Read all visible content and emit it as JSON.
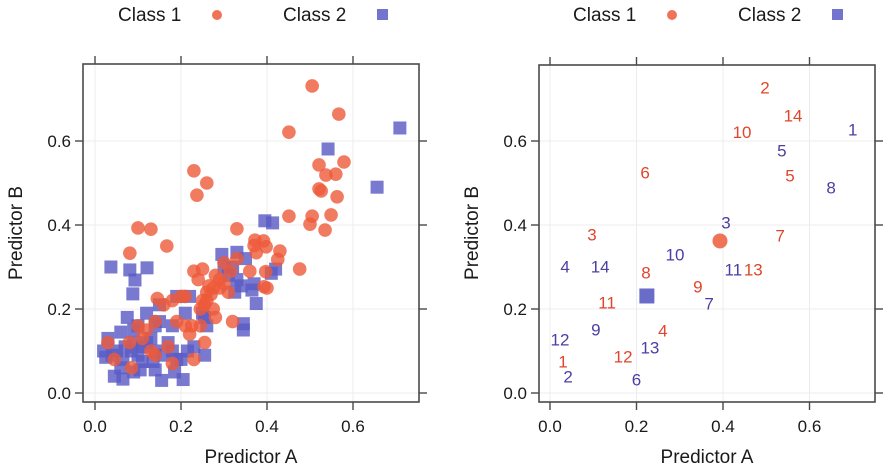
{
  "colors": {
    "class1": "#EE5A3A",
    "class2": "#5A5CC4",
    "class1_text": "#E0462C",
    "class2_text": "#4B3FA3"
  },
  "chart_data": [
    {
      "type": "scatter",
      "title": "",
      "legend": {
        "placement": "top",
        "entries": [
          {
            "label": "Class 1",
            "marker": "circle"
          },
          {
            "label": "Class 2",
            "marker": "square"
          }
        ]
      },
      "xlabel": "Predictor A",
      "ylabel": "Predictor B",
      "xlim": [
        -0.03,
        0.76
      ],
      "ylim": [
        -0.02,
        0.79
      ],
      "xticks": [
        0.0,
        0.2,
        0.4,
        0.6
      ],
      "yticks": [
        0.0,
        0.2,
        0.4,
        0.6
      ],
      "xtick_labels": [
        "0.0",
        "0.2",
        "0.4",
        "0.6"
      ],
      "ytick_labels": [
        "0.0",
        "0.2",
        "0.4",
        "0.6"
      ],
      "grid": true,
      "series": [
        {
          "name": "Class 1",
          "marker": "circle",
          "points": [
            [
              0.505,
              0.731
            ],
            [
              0.567,
              0.664
            ],
            [
              0.451,
              0.621
            ],
            [
              0.579,
              0.55
            ],
            [
              0.521,
              0.543
            ],
            [
              0.56,
              0.521
            ],
            [
              0.537,
              0.519
            ],
            [
              0.526,
              0.481
            ],
            [
              0.521,
              0.486
            ],
            [
              0.563,
              0.467
            ],
            [
              0.451,
              0.421
            ],
            [
              0.505,
              0.421
            ],
            [
              0.549,
              0.424
            ],
            [
              0.5,
              0.402
            ],
            [
              0.535,
              0.388
            ],
            [
              0.23,
              0.529
            ],
            [
              0.26,
              0.5
            ],
            [
              0.237,
              0.471
            ],
            [
              0.1,
              0.393
            ],
            [
              0.13,
              0.39
            ],
            [
              0.167,
              0.35
            ],
            [
              0.081,
              0.333
            ],
            [
              0.33,
              0.391
            ],
            [
              0.372,
              0.364
            ],
            [
              0.392,
              0.362
            ],
            [
              0.398,
              0.348
            ],
            [
              0.37,
              0.351
            ],
            [
              0.375,
              0.334
            ],
            [
              0.43,
              0.338
            ],
            [
              0.425,
              0.318
            ],
            [
              0.476,
              0.295
            ],
            [
              0.36,
              0.29
            ],
            [
              0.397,
              0.289
            ],
            [
              0.393,
              0.253
            ],
            [
              0.4,
              0.25
            ],
            [
              0.33,
              0.32
            ],
            [
              0.3,
              0.31
            ],
            [
              0.315,
              0.29
            ],
            [
              0.28,
              0.28
            ],
            [
              0.29,
              0.27
            ],
            [
              0.275,
              0.25
            ],
            [
              0.29,
              0.25
            ],
            [
              0.3,
              0.26
            ],
            [
              0.265,
              0.255
            ],
            [
              0.26,
              0.24
            ],
            [
              0.27,
              0.235
            ],
            [
              0.31,
              0.24
            ],
            [
              0.25,
              0.22
            ],
            [
              0.255,
              0.21
            ],
            [
              0.245,
              0.2
            ],
            [
              0.26,
              0.22
            ],
            [
              0.275,
              0.2
            ],
            [
              0.28,
              0.18
            ],
            [
              0.32,
              0.17
            ],
            [
              0.23,
              0.29
            ],
            [
              0.25,
              0.295
            ],
            [
              0.24,
              0.27
            ],
            [
              0.21,
              0.23
            ],
            [
              0.2,
              0.23
            ],
            [
              0.18,
              0.22
            ],
            [
              0.16,
              0.21
            ],
            [
              0.145,
              0.225
            ],
            [
              0.19,
              0.17
            ],
            [
              0.21,
              0.16
            ],
            [
              0.225,
              0.16
            ],
            [
              0.245,
              0.16
            ],
            [
              0.255,
              0.12
            ],
            [
              0.14,
              0.17
            ],
            [
              0.12,
              0.15
            ],
            [
              0.1,
              0.16
            ],
            [
              0.08,
              0.12
            ],
            [
              0.11,
              0.13
            ],
            [
              0.03,
              0.12
            ],
            [
              0.045,
              0.08
            ],
            [
              0.085,
              0.06
            ],
            [
              0.14,
              0.09
            ],
            [
              0.18,
              0.07
            ],
            [
              0.23,
              0.08
            ],
            [
              0.17,
              0.11
            ],
            [
              0.22,
              0.14
            ],
            [
              0.13,
              0.1
            ]
          ]
        },
        {
          "name": "Class 2",
          "marker": "square",
          "points": [
            [
              0.709,
              0.631
            ],
            [
              0.542,
              0.581
            ],
            [
              0.656,
              0.49
            ],
            [
              0.395,
              0.41
            ],
            [
              0.413,
              0.405
            ],
            [
              0.42,
              0.295
            ],
            [
              0.41,
              0.285
            ],
            [
              0.037,
              0.3
            ],
            [
              0.081,
              0.293
            ],
            [
              0.121,
              0.298
            ],
            [
              0.093,
              0.269
            ],
            [
              0.088,
              0.236
            ],
            [
              0.295,
              0.33
            ],
            [
              0.33,
              0.335
            ],
            [
              0.35,
              0.32
            ],
            [
              0.3,
              0.3
            ],
            [
              0.32,
              0.3
            ],
            [
              0.31,
              0.28
            ],
            [
              0.33,
              0.27
            ],
            [
              0.325,
              0.24
            ],
            [
              0.34,
              0.255
            ],
            [
              0.37,
              0.26
            ],
            [
              0.365,
              0.245
            ],
            [
              0.375,
              0.213
            ],
            [
              0.345,
              0.165
            ],
            [
              0.345,
              0.15
            ],
            [
              0.19,
              0.23
            ],
            [
              0.22,
              0.23
            ],
            [
              0.25,
              0.19
            ],
            [
              0.255,
              0.18
            ],
            [
              0.26,
              0.16
            ],
            [
              0.21,
              0.19
            ],
            [
              0.18,
              0.16
            ],
            [
              0.15,
              0.21
            ],
            [
              0.15,
              0.17
            ],
            [
              0.14,
              0.16
            ],
            [
              0.12,
              0.19
            ],
            [
              0.1,
              0.16
            ],
            [
              0.09,
              0.15
            ],
            [
              0.075,
              0.18
            ],
            [
              0.06,
              0.145
            ],
            [
              0.03,
              0.13
            ],
            [
              0.02,
              0.1
            ],
            [
              0.04,
              0.09
            ],
            [
              0.05,
              0.1
            ],
            [
              0.065,
              0.08
            ],
            [
              0.07,
              0.11
            ],
            [
              0.085,
              0.1
            ],
            [
              0.1,
              0.09
            ],
            [
              0.11,
              0.11
            ],
            [
              0.12,
              0.12
            ],
            [
              0.13,
              0.13
            ],
            [
              0.14,
              0.1
            ],
            [
              0.16,
              0.09
            ],
            [
              0.17,
              0.12
            ],
            [
              0.18,
              0.1
            ],
            [
              0.19,
              0.08
            ],
            [
              0.2,
              0.08
            ],
            [
              0.215,
              0.1
            ],
            [
              0.23,
              0.11
            ],
            [
              0.255,
              0.09
            ],
            [
              0.045,
              0.04
            ],
            [
              0.065,
              0.033
            ],
            [
              0.09,
              0.05
            ],
            [
              0.105,
              0.055
            ],
            [
              0.14,
              0.055
            ],
            [
              0.155,
              0.03
            ],
            [
              0.185,
              0.05
            ],
            [
              0.205,
              0.032
            ],
            [
              0.11,
              0.075
            ],
            [
              0.135,
              0.075
            ],
            [
              0.06,
              0.06
            ],
            [
              0.025,
              0.085
            ],
            [
              0.09,
              0.12
            ]
          ]
        }
      ]
    },
    {
      "type": "scatter",
      "title": "",
      "legend": {
        "placement": "top",
        "entries": [
          {
            "label": "Class 1",
            "marker": "circle"
          },
          {
            "label": "Class 2",
            "marker": "square"
          }
        ]
      },
      "xlabel": "Predictor A",
      "ylabel": "Predictor B",
      "xlim": [
        -0.03,
        0.76
      ],
      "ylim": [
        -0.02,
        0.79
      ],
      "xticks": [
        0.0,
        0.2,
        0.4,
        0.6
      ],
      "yticks": [
        0.0,
        0.2,
        0.4,
        0.6
      ],
      "xtick_labels": [
        "0.0",
        "0.2",
        "0.4",
        "0.6"
      ],
      "ytick_labels": [
        "0.0",
        "0.2",
        "0.4",
        "0.6"
      ],
      "grid": true,
      "highlighted_points": [
        {
          "class": "Class 1",
          "marker": "circle",
          "x": 0.393,
          "y": 0.362
        },
        {
          "class": "Class 2",
          "marker": "square",
          "x": 0.224,
          "y": 0.231
        }
      ],
      "series": [
        {
          "name": "Class 1",
          "marker": "text",
          "points": [
            {
              "label": "1",
              "x": 0.03,
              "y": 0.074
            },
            {
              "label": "2",
              "x": 0.497,
              "y": 0.726
            },
            {
              "label": "3",
              "x": 0.097,
              "y": 0.376
            },
            {
              "label": "4",
              "x": 0.261,
              "y": 0.148
            },
            {
              "label": "5",
              "x": 0.555,
              "y": 0.517
            },
            {
              "label": "6",
              "x": 0.22,
              "y": 0.524
            },
            {
              "label": "7",
              "x": 0.532,
              "y": 0.374
            },
            {
              "label": "8",
              "x": 0.222,
              "y": 0.286
            },
            {
              "label": "9",
              "x": 0.342,
              "y": 0.252
            },
            {
              "label": "10",
              "x": 0.444,
              "y": 0.62
            },
            {
              "label": "11",
              "x": 0.132,
              "y": 0.214
            },
            {
              "label": "12",
              "x": 0.169,
              "y": 0.086
            },
            {
              "label": "13",
              "x": 0.47,
              "y": 0.293
            },
            {
              "label": "14",
              "x": 0.562,
              "y": 0.66
            }
          ]
        },
        {
          "name": "Class 2",
          "marker": "text",
          "points": [
            {
              "label": "1",
              "x": 0.7,
              "y": 0.626
            },
            {
              "label": "2",
              "x": 0.042,
              "y": 0.038
            },
            {
              "label": "3",
              "x": 0.407,
              "y": 0.405
            },
            {
              "label": "4",
              "x": 0.035,
              "y": 0.3
            },
            {
              "label": "5",
              "x": 0.536,
              "y": 0.576
            },
            {
              "label": "6",
              "x": 0.2,
              "y": 0.031
            },
            {
              "label": "7",
              "x": 0.368,
              "y": 0.212
            },
            {
              "label": "8",
              "x": 0.65,
              "y": 0.488
            },
            {
              "label": "9",
              "x": 0.106,
              "y": 0.15
            },
            {
              "label": "10",
              "x": 0.289,
              "y": 0.329
            },
            {
              "label": "11",
              "x": 0.424,
              "y": 0.293
            },
            {
              "label": "12",
              "x": 0.023,
              "y": 0.126
            },
            {
              "label": "13",
              "x": 0.231,
              "y": 0.107
            },
            {
              "label": "14",
              "x": 0.116,
              "y": 0.3
            }
          ]
        }
      ]
    }
  ]
}
